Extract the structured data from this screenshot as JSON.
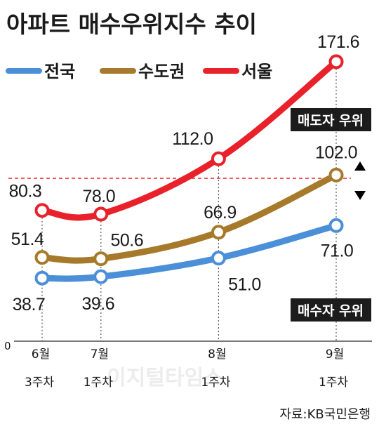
{
  "chart_data": {
    "type": "line",
    "title": "아파트 매수우위지수 추이",
    "categories": [
      {
        "month": "6월",
        "week": "3주차"
      },
      {
        "month": "7월",
        "week": "1주차"
      },
      {
        "month": "8월",
        "week": "1주차"
      },
      {
        "month": "9월",
        "week": "1주차"
      }
    ],
    "x_positions": [
      0,
      1,
      3,
      5
    ],
    "series": [
      {
        "name": "서울",
        "color": "#e8212b",
        "values": [
          80.3,
          78.0,
          112.0,
          171.6
        ]
      },
      {
        "name": "수도권",
        "color": "#a67a2a",
        "values": [
          51.4,
          50.6,
          66.9,
          102.0
        ]
      },
      {
        "name": "전국",
        "color": "#4a8fd8",
        "values": [
          38.7,
          39.6,
          51.0,
          71.0
        ]
      }
    ],
    "legend_order": [
      "전국",
      "수도권",
      "서울"
    ],
    "reference_line": {
      "value": 100,
      "color": "#e8212b",
      "style": "dashed"
    },
    "annotations": {
      "above": "매도자 우위",
      "below": "매수자 우위"
    },
    "y_zero_label": "0",
    "grid": false,
    "legend_position": "top-left"
  },
  "source": "자료:KB국민은행",
  "watermark": "이지털타임스"
}
